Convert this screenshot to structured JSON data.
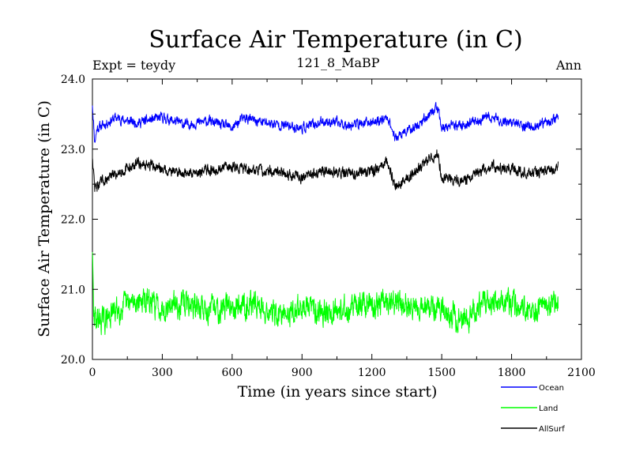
{
  "chart_data": {
    "type": "line",
    "title": "Surface Air Temperature (in C)",
    "subtitle_left": "Expt = teydy",
    "subtitle_center": "121_8_MaBP",
    "subtitle_right": "Ann",
    "xlabel": "Time (in years since start)",
    "ylabel": "Surface Air Temperature (in C)",
    "xlim": [
      0,
      2100
    ],
    "ylim": [
      20.0,
      24.0
    ],
    "xticks": [
      0,
      300,
      600,
      900,
      1200,
      1500,
      1800,
      2100
    ],
    "yticks": [
      20.0,
      21.0,
      22.0,
      23.0,
      24.0
    ],
    "ytick_labels": [
      "20.0",
      "21.0",
      "22.0",
      "23.0",
      "24.0"
    ],
    "grid": false,
    "legend_position": "bottom-right",
    "series": [
      {
        "name": "Ocean",
        "color": "#0000ff",
        "x_range": [
          0,
          2000
        ],
        "mean": 23.38,
        "anchor_points": [
          [
            0,
            23.65
          ],
          [
            10,
            23.1
          ],
          [
            20,
            23.3
          ],
          [
            50,
            23.35
          ],
          [
            100,
            23.45
          ],
          [
            150,
            23.4
          ],
          [
            200,
            23.38
          ],
          [
            300,
            23.45
          ],
          [
            400,
            23.35
          ],
          [
            500,
            23.4
          ],
          [
            600,
            23.3
          ],
          [
            650,
            23.45
          ],
          [
            700,
            23.4
          ],
          [
            800,
            23.35
          ],
          [
            900,
            23.3
          ],
          [
            1000,
            23.4
          ],
          [
            1100,
            23.35
          ],
          [
            1200,
            23.38
          ],
          [
            1270,
            23.45
          ],
          [
            1300,
            23.15
          ],
          [
            1400,
            23.35
          ],
          [
            1480,
            23.6
          ],
          [
            1500,
            23.3
          ],
          [
            1600,
            23.35
          ],
          [
            1700,
            23.45
          ],
          [
            1800,
            23.38
          ],
          [
            1900,
            23.3
          ],
          [
            2000,
            23.45
          ]
        ]
      },
      {
        "name": "Land",
        "color": "#00ff00",
        "x_range": [
          0,
          2000
        ],
        "mean": 20.75,
        "anchor_points": [
          [
            0,
            21.6
          ],
          [
            5,
            20.6
          ],
          [
            50,
            20.55
          ],
          [
            100,
            20.7
          ],
          [
            200,
            20.85
          ],
          [
            300,
            20.75
          ],
          [
            400,
            20.8
          ],
          [
            500,
            20.7
          ],
          [
            600,
            20.78
          ],
          [
            700,
            20.8
          ],
          [
            800,
            20.6
          ],
          [
            900,
            20.75
          ],
          [
            1000,
            20.7
          ],
          [
            1100,
            20.72
          ],
          [
            1200,
            20.8
          ],
          [
            1300,
            20.78
          ],
          [
            1400,
            20.75
          ],
          [
            1500,
            20.7
          ],
          [
            1600,
            20.55
          ],
          [
            1700,
            20.85
          ],
          [
            1800,
            20.8
          ],
          [
            1900,
            20.7
          ],
          [
            2000,
            20.8
          ]
        ]
      },
      {
        "name": "AllSurf",
        "color": "#000000",
        "x_range": [
          0,
          2000
        ],
        "mean": 22.68,
        "anchor_points": [
          [
            0,
            22.9
          ],
          [
            10,
            22.45
          ],
          [
            50,
            22.55
          ],
          [
            100,
            22.65
          ],
          [
            200,
            22.8
          ],
          [
            300,
            22.72
          ],
          [
            400,
            22.65
          ],
          [
            500,
            22.7
          ],
          [
            600,
            22.75
          ],
          [
            700,
            22.7
          ],
          [
            800,
            22.68
          ],
          [
            900,
            22.6
          ],
          [
            1000,
            22.7
          ],
          [
            1100,
            22.65
          ],
          [
            1200,
            22.68
          ],
          [
            1270,
            22.8
          ],
          [
            1300,
            22.45
          ],
          [
            1400,
            22.7
          ],
          [
            1480,
            22.95
          ],
          [
            1500,
            22.6
          ],
          [
            1600,
            22.55
          ],
          [
            1700,
            22.75
          ],
          [
            1800,
            22.72
          ],
          [
            1900,
            22.65
          ],
          [
            2000,
            22.75
          ]
        ]
      }
    ]
  }
}
